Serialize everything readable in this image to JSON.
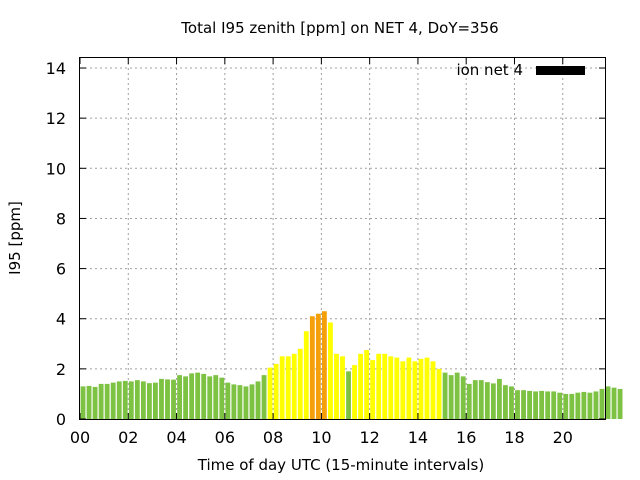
{
  "chart_data": {
    "type": "bar",
    "title": "Total I95 zenith [ppm] on NET 4, DoY=356",
    "xlabel": "Time of day UTC (15-minute intervals)",
    "ylabel": "I95 [ppm]",
    "xlim": [
      0,
      21.75
    ],
    "ylim": [
      0,
      14.4
    ],
    "yticks": [
      "0",
      "2",
      "4",
      "6",
      "8",
      "10",
      "12",
      "14"
    ],
    "xticks": [
      "00",
      "02",
      "04",
      "06",
      "08",
      "10",
      "12",
      "14",
      "16",
      "18",
      "20"
    ],
    "grid": true,
    "legend": {
      "position": "top-right",
      "label": "ion net 4",
      "color": "#000000"
    },
    "interval_hours": 0.25,
    "series": [
      {
        "name": "ion net 4",
        "values": [
          1.3,
          1.32,
          1.28,
          1.4,
          1.4,
          1.45,
          1.5,
          1.52,
          1.5,
          1.55,
          1.5,
          1.43,
          1.45,
          1.6,
          1.58,
          1.57,
          1.75,
          1.7,
          1.82,
          1.85,
          1.8,
          1.7,
          1.75,
          1.65,
          1.45,
          1.38,
          1.35,
          1.3,
          1.38,
          1.5,
          1.75,
          2.05,
          2.2,
          2.5,
          2.5,
          2.6,
          2.8,
          3.5,
          4.1,
          4.2,
          4.3,
          3.85,
          2.6,
          2.5,
          1.9,
          2.15,
          2.6,
          2.75,
          2.35,
          2.6,
          2.6,
          2.5,
          2.45,
          2.3,
          2.45,
          2.3,
          2.4,
          2.45,
          2.3,
          2.0,
          1.85,
          1.75,
          1.85,
          1.7,
          1.4,
          1.55,
          1.55,
          1.47,
          1.42,
          1.6,
          1.35,
          1.3,
          1.15,
          1.15,
          1.12,
          1.1,
          1.12,
          1.1,
          1.1,
          1.05,
          1.0,
          1.0,
          1.05,
          1.08,
          1.05,
          1.1,
          1.2,
          1.3,
          1.25,
          1.2
        ]
      }
    ],
    "colors": {
      "low": "#7dc243",
      "medium": "#ffff00",
      "high": "#f5a00a"
    },
    "thresholds": {
      "medium": 2.0,
      "high": 4.0
    }
  }
}
